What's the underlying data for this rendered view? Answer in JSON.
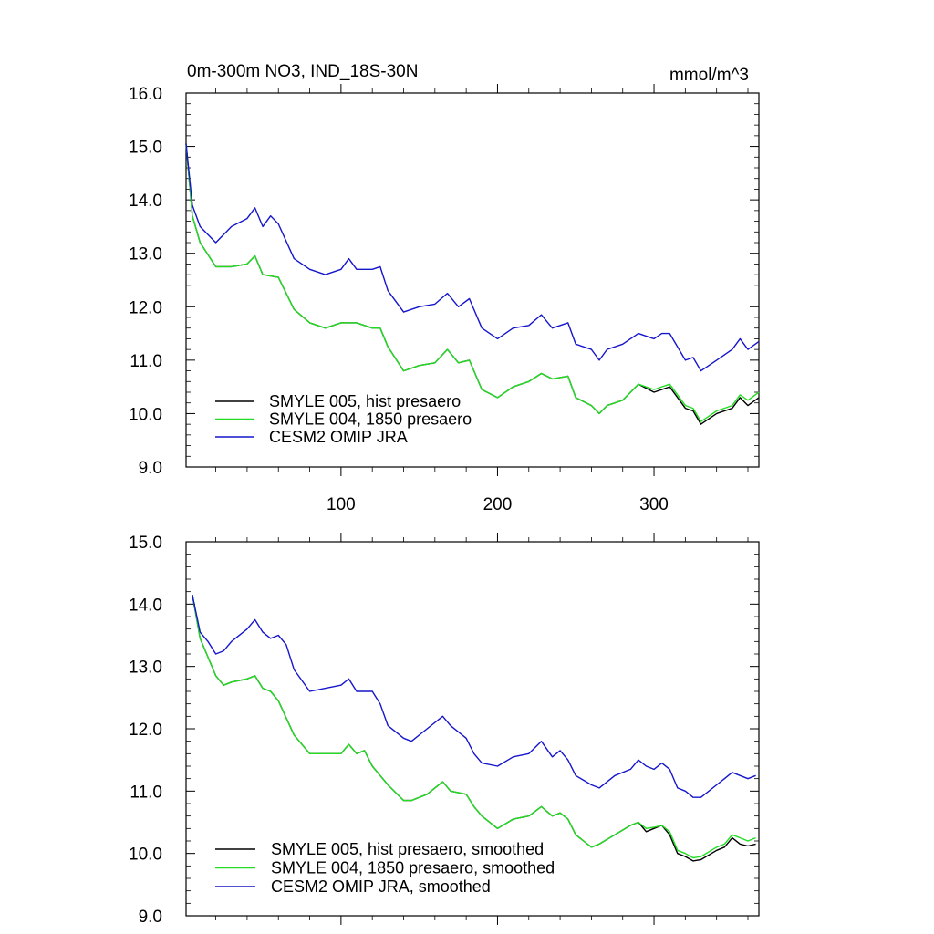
{
  "figure": {
    "title_left": "0m-300m NO3, IND_18S-30N",
    "title_right": "mmol/m^3"
  },
  "colors": {
    "black": "#000000",
    "green": "#22dd22",
    "blue": "#1515cc"
  },
  "chart_data": [
    {
      "type": "line",
      "xlim": [
        1,
        367
      ],
      "ylim": [
        9.0,
        16.0
      ],
      "yticks": [
        "9.0",
        "10.0",
        "11.0",
        "12.0",
        "13.0",
        "14.0",
        "15.0",
        "16.0"
      ],
      "xticks": [
        "100",
        "200",
        "300"
      ],
      "legend_position": "bottom-left",
      "series": [
        {
          "name": "SMYLE 005, hist presaero",
          "color": "#000000",
          "x": [
            1,
            5,
            10,
            20,
            30,
            40,
            45,
            50,
            60,
            70,
            80,
            90,
            100,
            110,
            120,
            125,
            130,
            140,
            150,
            160,
            168,
            175,
            182,
            190,
            200,
            210,
            220,
            228,
            235,
            245,
            250,
            260,
            265,
            270,
            280,
            290,
            300,
            305,
            310,
            320,
            325,
            330,
            340,
            350,
            355,
            360,
            367
          ],
          "y": [
            15.05,
            13.7,
            13.2,
            12.75,
            12.75,
            12.8,
            12.95,
            12.6,
            12.55,
            11.95,
            11.7,
            11.6,
            11.7,
            11.7,
            11.6,
            11.6,
            11.25,
            10.8,
            10.9,
            10.95,
            11.2,
            10.95,
            11.0,
            10.45,
            10.3,
            10.5,
            10.6,
            10.75,
            10.65,
            10.7,
            10.3,
            10.15,
            10.0,
            10.15,
            10.25,
            10.55,
            10.4,
            10.45,
            10.5,
            10.1,
            10.05,
            9.8,
            10.0,
            10.1,
            10.3,
            10.15,
            10.3
          ]
        },
        {
          "name": "SMYLE 004, 1850 presaero",
          "color": "#22dd22",
          "x": [
            1,
            5,
            10,
            20,
            30,
            40,
            45,
            50,
            60,
            70,
            80,
            90,
            100,
            110,
            120,
            125,
            130,
            140,
            150,
            160,
            168,
            175,
            182,
            190,
            200,
            210,
            220,
            228,
            235,
            245,
            250,
            260,
            265,
            270,
            280,
            290,
            300,
            305,
            310,
            320,
            325,
            330,
            340,
            350,
            355,
            360,
            367
          ],
          "y": [
            15.05,
            13.7,
            13.2,
            12.75,
            12.75,
            12.8,
            12.95,
            12.6,
            12.55,
            11.95,
            11.7,
            11.6,
            11.7,
            11.7,
            11.6,
            11.6,
            11.25,
            10.8,
            10.9,
            10.95,
            11.2,
            10.95,
            11.0,
            10.45,
            10.3,
            10.5,
            10.6,
            10.75,
            10.65,
            10.7,
            10.3,
            10.15,
            10.0,
            10.15,
            10.25,
            10.55,
            10.45,
            10.5,
            10.55,
            10.15,
            10.1,
            9.85,
            10.05,
            10.15,
            10.35,
            10.25,
            10.4
          ]
        },
        {
          "name": "CESM2 OMIP JRA",
          "color": "#1515cc",
          "x": [
            1,
            5,
            10,
            20,
            30,
            40,
            45,
            50,
            55,
            60,
            70,
            80,
            90,
            100,
            105,
            110,
            120,
            125,
            130,
            140,
            150,
            160,
            168,
            175,
            182,
            190,
            200,
            210,
            220,
            228,
            235,
            245,
            250,
            260,
            265,
            270,
            280,
            290,
            300,
            305,
            310,
            320,
            325,
            330,
            340,
            350,
            355,
            360,
            367
          ],
          "y": [
            15.05,
            13.9,
            13.5,
            13.2,
            13.5,
            13.65,
            13.85,
            13.5,
            13.7,
            13.55,
            12.9,
            12.7,
            12.6,
            12.7,
            12.9,
            12.7,
            12.7,
            12.75,
            12.3,
            11.9,
            12.0,
            12.05,
            12.25,
            12.0,
            12.15,
            11.6,
            11.4,
            11.6,
            11.65,
            11.85,
            11.6,
            11.7,
            11.3,
            11.2,
            11.0,
            11.2,
            11.3,
            11.5,
            11.4,
            11.5,
            11.5,
            11.0,
            11.05,
            10.8,
            11.0,
            11.2,
            11.4,
            11.2,
            11.35
          ]
        }
      ]
    },
    {
      "type": "line",
      "xlim": [
        1,
        367
      ],
      "ylim": [
        9.0,
        15.0
      ],
      "yticks": [
        "9.0",
        "10.0",
        "11.0",
        "12.0",
        "13.0",
        "14.0",
        "15.0"
      ],
      "xticks": [],
      "xtick_positions": [
        100,
        200,
        300
      ],
      "legend_position": "bottom-left",
      "series": [
        {
          "name": "SMYLE 005, hist presaero, smoothed",
          "color": "#000000",
          "x": [
            5,
            10,
            15,
            20,
            25,
            30,
            40,
            45,
            50,
            55,
            60,
            70,
            80,
            90,
            100,
            105,
            110,
            115,
            120,
            125,
            130,
            140,
            145,
            155,
            165,
            170,
            180,
            185,
            190,
            200,
            210,
            220,
            228,
            235,
            240,
            245,
            250,
            255,
            260,
            265,
            275,
            285,
            290,
            295,
            300,
            305,
            310,
            315,
            320,
            325,
            330,
            340,
            345,
            350,
            355,
            360,
            365
          ],
          "y": [
            14.15,
            13.45,
            13.15,
            12.85,
            12.7,
            12.75,
            12.8,
            12.85,
            12.65,
            12.6,
            12.45,
            11.9,
            11.6,
            11.6,
            11.6,
            11.75,
            11.6,
            11.65,
            11.4,
            11.25,
            11.1,
            10.85,
            10.85,
            10.95,
            11.15,
            11.0,
            10.95,
            10.75,
            10.6,
            10.4,
            10.55,
            10.6,
            10.75,
            10.6,
            10.65,
            10.55,
            10.3,
            10.2,
            10.1,
            10.15,
            10.3,
            10.45,
            10.5,
            10.35,
            10.4,
            10.45,
            10.3,
            10.0,
            9.95,
            9.88,
            9.9,
            10.05,
            10.1,
            10.25,
            10.15,
            10.12,
            10.15
          ]
        },
        {
          "name": "SMYLE 004, 1850 presaero, smoothed",
          "color": "#22dd22",
          "x": [
            5,
            10,
            15,
            20,
            25,
            30,
            40,
            45,
            50,
            55,
            60,
            70,
            80,
            90,
            100,
            105,
            110,
            115,
            120,
            125,
            130,
            140,
            145,
            155,
            165,
            170,
            180,
            185,
            190,
            200,
            210,
            220,
            228,
            235,
            240,
            245,
            250,
            255,
            260,
            265,
            275,
            285,
            290,
            295,
            300,
            305,
            310,
            315,
            320,
            325,
            330,
            340,
            345,
            350,
            355,
            360,
            365
          ],
          "y": [
            14.15,
            13.45,
            13.15,
            12.85,
            12.7,
            12.75,
            12.8,
            12.85,
            12.65,
            12.6,
            12.45,
            11.9,
            11.6,
            11.6,
            11.6,
            11.75,
            11.6,
            11.65,
            11.4,
            11.25,
            11.1,
            10.85,
            10.85,
            10.95,
            11.15,
            11.0,
            10.95,
            10.75,
            10.6,
            10.4,
            10.55,
            10.6,
            10.75,
            10.6,
            10.65,
            10.55,
            10.3,
            10.2,
            10.1,
            10.15,
            10.3,
            10.45,
            10.5,
            10.4,
            10.42,
            10.45,
            10.35,
            10.05,
            10.0,
            9.93,
            9.95,
            10.1,
            10.15,
            10.3,
            10.25,
            10.2,
            10.25
          ]
        },
        {
          "name": "CESM2 OMIP JRA, smoothed",
          "color": "#1515cc",
          "x": [
            5,
            10,
            15,
            20,
            25,
            30,
            40,
            45,
            50,
            55,
            60,
            65,
            70,
            80,
            90,
            100,
            105,
            110,
            120,
            125,
            130,
            140,
            145,
            155,
            165,
            170,
            180,
            185,
            190,
            200,
            210,
            220,
            228,
            235,
            240,
            245,
            250,
            260,
            265,
            275,
            285,
            290,
            295,
            300,
            305,
            310,
            315,
            320,
            325,
            330,
            340,
            345,
            350,
            355,
            360,
            365
          ],
          "y": [
            14.15,
            13.55,
            13.4,
            13.2,
            13.25,
            13.4,
            13.6,
            13.75,
            13.55,
            13.45,
            13.5,
            13.35,
            12.95,
            12.6,
            12.65,
            12.7,
            12.8,
            12.6,
            12.6,
            12.4,
            12.05,
            11.85,
            11.8,
            12.0,
            12.2,
            12.05,
            11.85,
            11.6,
            11.45,
            11.4,
            11.55,
            11.6,
            11.8,
            11.55,
            11.65,
            11.5,
            11.25,
            11.1,
            11.05,
            11.25,
            11.35,
            11.5,
            11.4,
            11.35,
            11.45,
            11.35,
            11.05,
            11.0,
            10.9,
            10.9,
            11.1,
            11.2,
            11.3,
            11.25,
            11.2,
            11.25
          ]
        }
      ]
    }
  ]
}
